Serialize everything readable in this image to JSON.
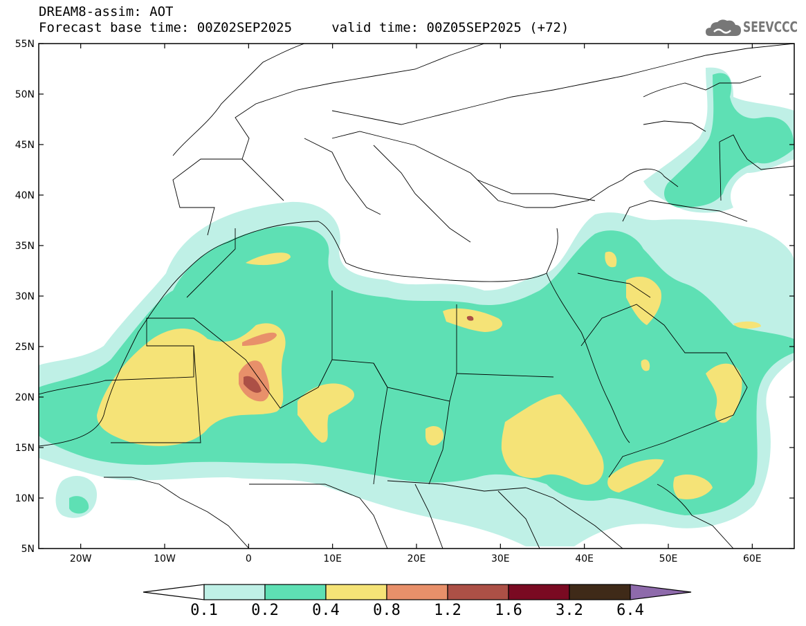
{
  "header": {
    "line1": "DREAM8-assim: AOT",
    "line2": "Forecast base time: 00Z02SEP2025     valid time: 00Z05SEP2025 (+72)"
  },
  "logo": {
    "text": "SEEVCCC",
    "icon": "cloud-icon"
  },
  "map": {
    "lat_labels": [
      "55N",
      "50N",
      "45N",
      "40N",
      "35N",
      "30N",
      "25N",
      "20N",
      "15N",
      "10N",
      "5N"
    ],
    "lon_labels": [
      "20W",
      "10W",
      "0",
      "10E",
      "20E",
      "30E",
      "40E",
      "50E",
      "60E"
    ],
    "lon_range": [
      -25,
      65
    ],
    "lat_range": [
      5,
      55
    ]
  },
  "colorbar": {
    "labels": [
      "0.1",
      "0.2",
      "0.4",
      "0.8",
      "1.2",
      "1.6",
      "3.2",
      "6.4"
    ],
    "colors": {
      "under": "#ffffff",
      "b1": "#bff0e6",
      "b2": "#5ee0b4",
      "b3": "#f5e377",
      "b4": "#e8906a",
      "b5": "#ac5046",
      "b6": "#7a0a22",
      "b7": "#3f2a18",
      "over": "#8e6aab"
    }
  },
  "colors": {
    "land": "#ffffff",
    "border": "#000000",
    "frame": "#000000"
  }
}
